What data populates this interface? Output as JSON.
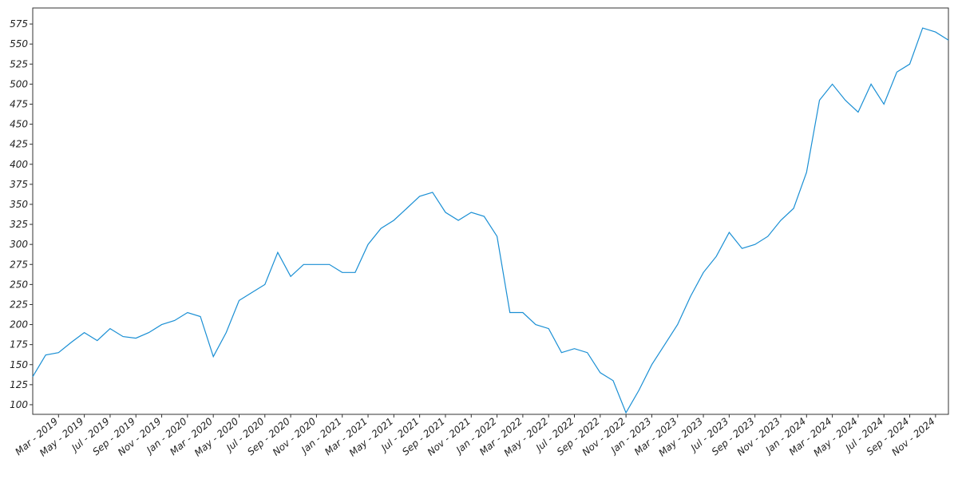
{
  "chart_data": {
    "type": "line",
    "x": [
      "2019-01",
      "2019-02",
      "2019-03",
      "2019-04",
      "2019-05",
      "2019-06",
      "2019-07",
      "2019-08",
      "2019-09",
      "2019-10",
      "2019-11",
      "2019-12",
      "2020-01",
      "2020-02",
      "2020-03",
      "2020-04",
      "2020-05",
      "2020-06",
      "2020-07",
      "2020-08",
      "2020-09",
      "2020-10",
      "2020-11",
      "2020-12",
      "2021-01",
      "2021-02",
      "2021-03",
      "2021-04",
      "2021-05",
      "2021-06",
      "2021-07",
      "2021-08",
      "2021-09",
      "2021-10",
      "2021-11",
      "2021-12",
      "2022-01",
      "2022-02",
      "2022-03",
      "2022-04",
      "2022-05",
      "2022-06",
      "2022-07",
      "2022-08",
      "2022-09",
      "2022-10",
      "2022-11",
      "2022-12",
      "2023-01",
      "2023-02",
      "2023-03",
      "2023-04",
      "2023-05",
      "2023-06",
      "2023-07",
      "2023-08",
      "2023-09",
      "2023-10",
      "2023-11",
      "2023-12",
      "2024-01",
      "2024-02",
      "2024-03",
      "2024-04",
      "2024-05",
      "2024-06",
      "2024-07",
      "2024-08",
      "2024-09",
      "2024-10",
      "2024-11",
      "2024-12"
    ],
    "series": [
      {
        "color": "#1a8fd4",
        "values": [
          135,
          162,
          165,
          178,
          190,
          180,
          195,
          185,
          183,
          190,
          200,
          205,
          215,
          210,
          160,
          190,
          230,
          240,
          250,
          290,
          260,
          275,
          275,
          275,
          265,
          265,
          300,
          320,
          330,
          345,
          360,
          365,
          340,
          330,
          340,
          335,
          310,
          215,
          215,
          200,
          195,
          165,
          170,
          165,
          140,
          130,
          90,
          118,
          150,
          175,
          200,
          235,
          265,
          285,
          315,
          295,
          300,
          310,
          330,
          345,
          390,
          480,
          500,
          480,
          465,
          500,
          475,
          515,
          525,
          570,
          565,
          555
        ]
      }
    ],
    "xlim": [
      "2019-01",
      "2024-12"
    ],
    "xticks": [
      {
        "value": "2019-03",
        "label": "Mar - 2019"
      },
      {
        "value": "2019-05",
        "label": "May - 2019"
      },
      {
        "value": "2019-07",
        "label": "Jul - 2019"
      },
      {
        "value": "2019-09",
        "label": "Sep - 2019"
      },
      {
        "value": "2019-11",
        "label": "Nov - 2019"
      },
      {
        "value": "2020-01",
        "label": "Jan - 2020"
      },
      {
        "value": "2020-03",
        "label": "Mar - 2020"
      },
      {
        "value": "2020-05",
        "label": "May - 2020"
      },
      {
        "value": "2020-07",
        "label": "Jul - 2020"
      },
      {
        "value": "2020-09",
        "label": "Sep - 2020"
      },
      {
        "value": "2020-11",
        "label": "Nov - 2020"
      },
      {
        "value": "2021-01",
        "label": "Jan - 2021"
      },
      {
        "value": "2021-03",
        "label": "Mar - 2021"
      },
      {
        "value": "2021-05",
        "label": "May - 2021"
      },
      {
        "value": "2021-07",
        "label": "Jul - 2021"
      },
      {
        "value": "2021-09",
        "label": "Sep - 2021"
      },
      {
        "value": "2021-11",
        "label": "Nov - 2021"
      },
      {
        "value": "2022-01",
        "label": "Jan - 2022"
      },
      {
        "value": "2022-03",
        "label": "Mar - 2022"
      },
      {
        "value": "2022-05",
        "label": "May - 2022"
      },
      {
        "value": "2022-07",
        "label": "Jul - 2022"
      },
      {
        "value": "2022-09",
        "label": "Sep - 2022"
      },
      {
        "value": "2022-11",
        "label": "Nov - 2022"
      },
      {
        "value": "2023-01",
        "label": "Jan - 2023"
      },
      {
        "value": "2023-03",
        "label": "Mar - 2023"
      },
      {
        "value": "2023-05",
        "label": "May - 2023"
      },
      {
        "value": "2023-07",
        "label": "Jul - 2023"
      },
      {
        "value": "2023-09",
        "label": "Sep - 2023"
      },
      {
        "value": "2023-11",
        "label": "Nov - 2023"
      },
      {
        "value": "2024-01",
        "label": "Jan - 2024"
      },
      {
        "value": "2024-03",
        "label": "Mar - 2024"
      },
      {
        "value": "2024-05",
        "label": "May - 2024"
      },
      {
        "value": "2024-07",
        "label": "Jul - 2024"
      },
      {
        "value": "2024-09",
        "label": "Sep - 2024"
      },
      {
        "value": "2024-11",
        "label": "Nov - 2024"
      }
    ],
    "ylim": [
      88,
      595
    ],
    "yticks": [
      100,
      125,
      150,
      175,
      200,
      225,
      250,
      275,
      300,
      325,
      350,
      375,
      400,
      425,
      450,
      475,
      500,
      525,
      550,
      575
    ]
  }
}
